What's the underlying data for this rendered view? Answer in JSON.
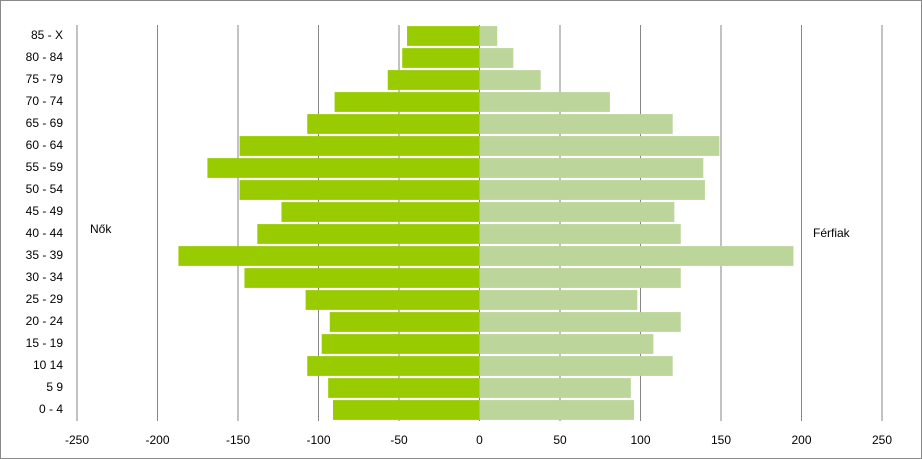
{
  "chart_data": {
    "type": "bar",
    "orientation": "horizontal",
    "stacked": true,
    "categories": [
      "85 - X",
      "80 - 84",
      "75 - 79",
      "70 - 74",
      "65 - 69",
      "60 - 64",
      "55 - 59",
      "50 - 54",
      "45 - 49",
      "40 - 44",
      "35 - 39",
      "30 - 34",
      "25 - 29",
      "20 - 24",
      "15 - 19",
      "10 14",
      "5 9",
      "0 - 4"
    ],
    "series": [
      {
        "name": "Nők",
        "color": "#99cc00",
        "values": [
          -45,
          -48,
          -57,
          -90,
          -107,
          -149,
          -169,
          -149,
          -123,
          -138,
          -187,
          -146,
          -108,
          -93,
          -98,
          -107,
          -94,
          -91
        ]
      },
      {
        "name": "Férfiak",
        "color": "#bcd59b",
        "values": [
          11,
          21,
          38,
          81,
          120,
          149,
          139,
          140,
          121,
          125,
          195,
          125,
          98,
          125,
          108,
          120,
          94,
          96
        ]
      }
    ],
    "xlim": [
      -250,
      250
    ],
    "xticks": [
      -250,
      -200,
      -150,
      -100,
      -50,
      0,
      50,
      100,
      150,
      200,
      250
    ],
    "grid": true
  }
}
